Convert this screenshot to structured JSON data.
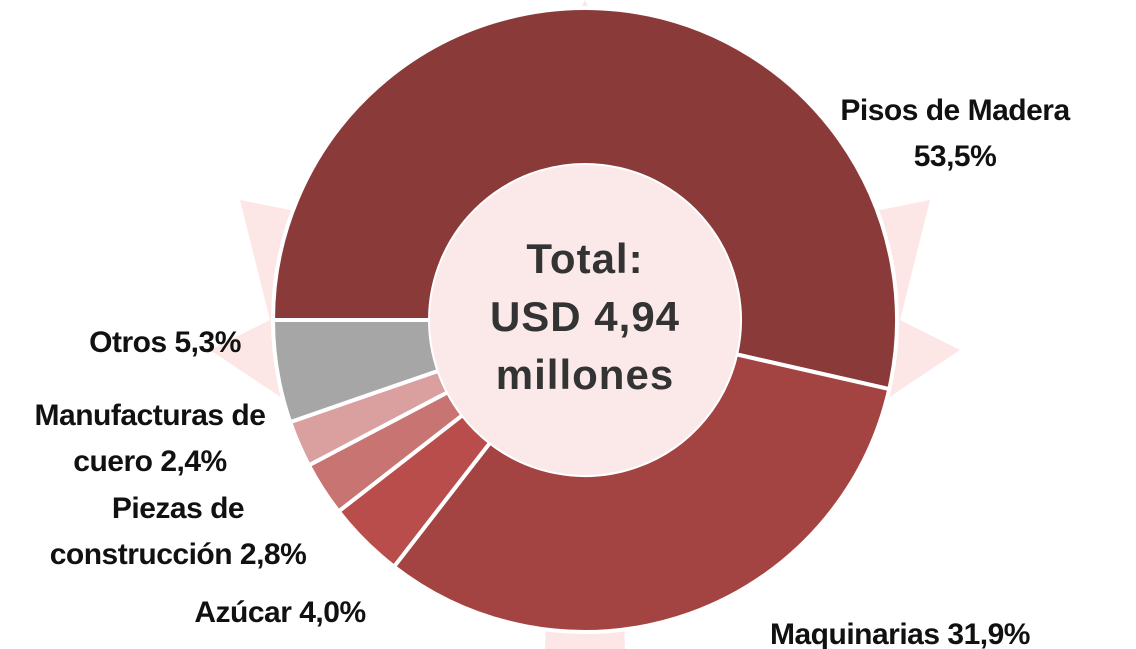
{
  "chart_data": {
    "type": "donut",
    "categories": [
      "Pisos de Madera",
      "Maquinarias",
      "Azúcar",
      "Piezas de construcción",
      "Manufacturas de cuero",
      "Otros"
    ],
    "values": [
      53.5,
      31.9,
      4.0,
      2.8,
      2.4,
      5.3
    ],
    "value_labels": [
      "53,5%",
      "31,9%",
      "4,0%",
      "2,8%",
      "2,4%",
      "5,3%"
    ],
    "colors": [
      "#8b3a3a",
      "#a34442",
      "#b84d4b",
      "#c87472",
      "#d9a09f",
      "#a6a6a6"
    ],
    "center_text": [
      "Total:",
      "USD 4,94",
      "millones"
    ]
  }
}
